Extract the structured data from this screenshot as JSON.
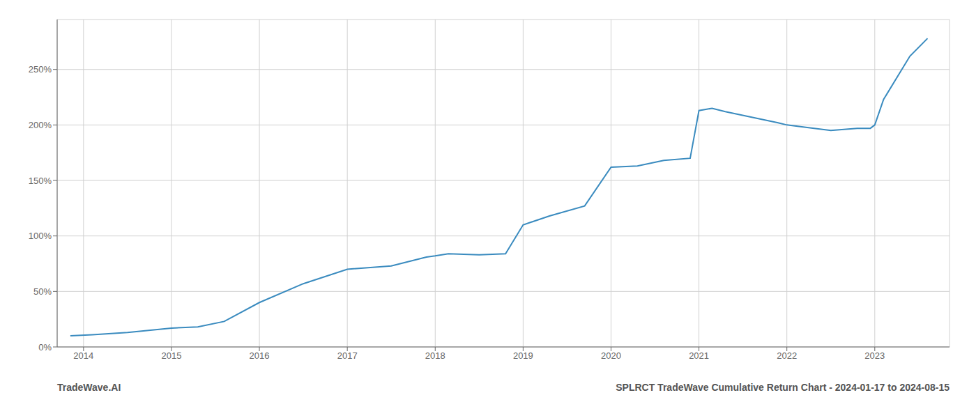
{
  "chart_data": {
    "type": "line",
    "title": "SPLRCT TradeWave Cumulative Return Chart - 2024-01-17 to 2024-08-15",
    "annotations": [
      "TradeWave.AI"
    ],
    "x": [
      2013.85,
      2014.1,
      2014.5,
      2015.0,
      2015.3,
      2015.6,
      2016.0,
      2016.5,
      2017.0,
      2017.5,
      2017.9,
      2018.0,
      2018.15,
      2018.5,
      2018.8,
      2019.0,
      2019.3,
      2019.7,
      2020.0,
      2020.3,
      2020.6,
      2020.9,
      2021.0,
      2021.15,
      2021.3,
      2021.6,
      2021.9,
      2022.0,
      2022.2,
      2022.5,
      2022.8,
      2022.95,
      2023.0,
      2023.1,
      2023.4,
      2023.6
    ],
    "values": [
      10,
      11,
      13,
      17,
      18,
      23,
      40,
      57,
      70,
      73,
      81,
      82,
      84,
      83,
      84,
      110,
      118,
      127,
      162,
      163,
      168,
      170,
      213,
      215,
      212,
      207,
      202,
      200,
      198,
      195,
      197,
      197,
      200,
      223,
      262,
      278
    ],
    "color": "#3a8bbf",
    "xlim": [
      2013.7,
      2023.85
    ],
    "xticks": [
      2014,
      2015,
      2016,
      2017,
      2018,
      2019,
      2020,
      2021,
      2022,
      2023
    ],
    "ylim": [
      0,
      295
    ],
    "yticks": [
      {
        "value": 0,
        "label": "0%"
      },
      {
        "value": 50,
        "label": "50%"
      },
      {
        "value": 100,
        "label": "100%"
      },
      {
        "value": 150,
        "label": "150%"
      },
      {
        "value": 200,
        "label": "200%"
      },
      {
        "value": 250,
        "label": "250%"
      }
    ],
    "grid": true
  }
}
